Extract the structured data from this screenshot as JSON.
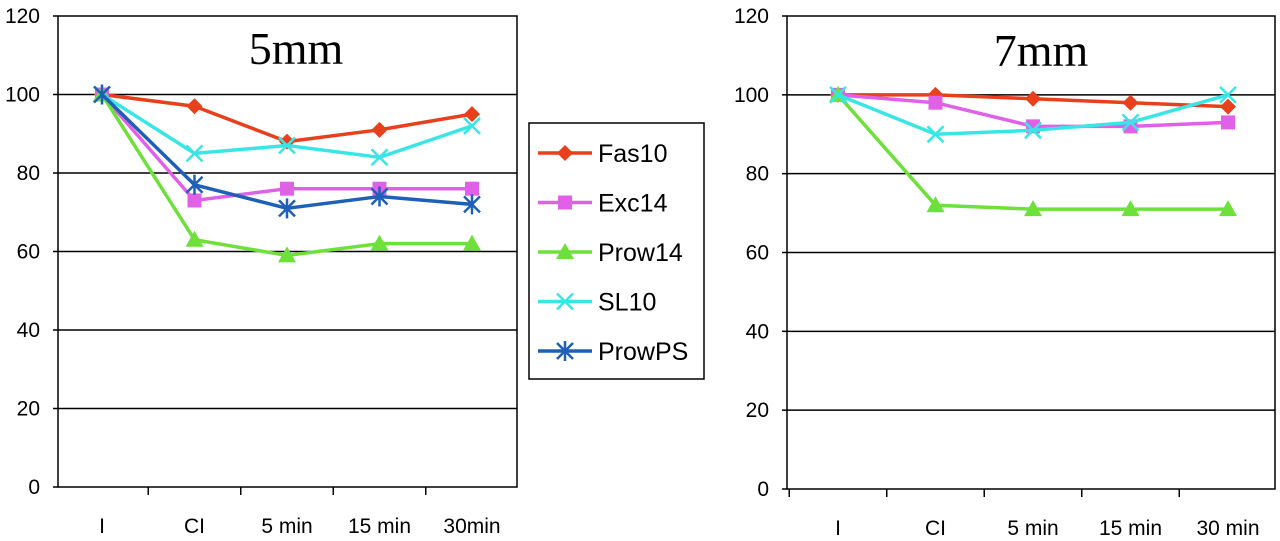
{
  "chart_data": [
    {
      "type": "line",
      "title": "5mm",
      "categories": [
        "I",
        "CI",
        "5 min",
        "15 min",
        "30min"
      ],
      "ylim": [
        0,
        120
      ],
      "yticks": [
        0,
        20,
        40,
        60,
        80,
        100,
        120
      ],
      "grid": true,
      "legend": "right",
      "series": [
        {
          "name": "Fas10",
          "color": "#e8401c",
          "marker": "diamond",
          "values": [
            100,
            97,
            88,
            91,
            95
          ]
        },
        {
          "name": "Exc14",
          "color": "#e060e8",
          "marker": "square",
          "values": [
            100,
            73,
            76,
            76,
            76
          ]
        },
        {
          "name": "Prow14",
          "color": "#6ee03a",
          "marker": "triangle",
          "values": [
            100,
            63,
            59,
            62,
            62
          ]
        },
        {
          "name": "SL10",
          "color": "#38e6e6",
          "marker": "x",
          "values": [
            100,
            85,
            87,
            84,
            92
          ]
        },
        {
          "name": "ProwPS",
          "color": "#1e5fb8",
          "marker": "asterisk",
          "values": [
            100,
            77,
            71,
            74,
            72
          ]
        }
      ]
    },
    {
      "type": "line",
      "title": "7mm",
      "categories": [
        "I",
        "CI",
        "5 min",
        "15 min",
        "30 min"
      ],
      "ylim": [
        0,
        120
      ],
      "yticks": [
        0,
        20,
        40,
        60,
        80,
        100,
        120
      ],
      "grid": true,
      "series": [
        {
          "name": "Fas10",
          "color": "#e8401c",
          "marker": "diamond",
          "values": [
            100,
            100,
            99,
            98,
            97
          ]
        },
        {
          "name": "Exc14",
          "color": "#e060e8",
          "marker": "square",
          "values": [
            100,
            98,
            92,
            92,
            93
          ]
        },
        {
          "name": "Prow14",
          "color": "#6ee03a",
          "marker": "triangle",
          "values": [
            100,
            72,
            71,
            71,
            71
          ]
        },
        {
          "name": "SL10",
          "color": "#38e6e6",
          "marker": "x",
          "values": [
            100,
            90,
            91,
            93,
            100
          ]
        }
      ]
    }
  ]
}
